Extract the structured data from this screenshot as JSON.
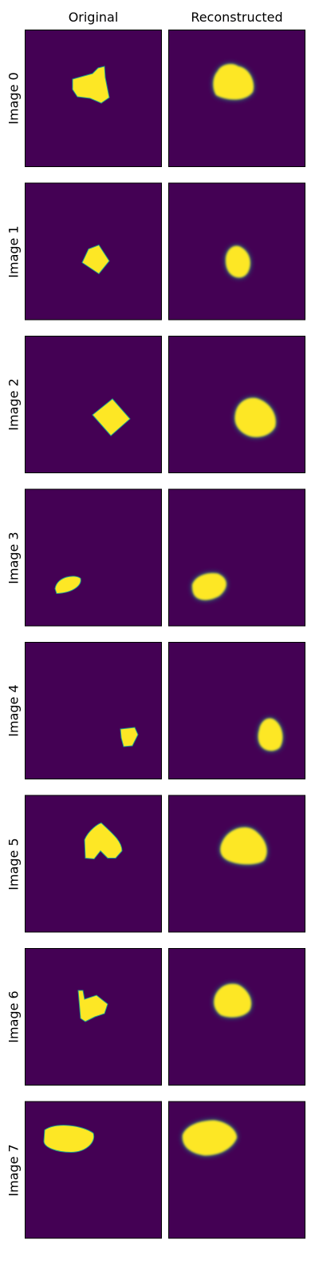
{
  "headers": {
    "original": "Original",
    "reconstructed": "Reconstructed"
  },
  "colors": {
    "background": "#440154",
    "shape": "#fde725",
    "edge": "#21a08a",
    "frame": "#000000"
  },
  "rows": [
    {
      "label": "Image 0",
      "original_shape": "irregular-blob",
      "reconstructed_shape": "rounded-blob"
    },
    {
      "label": "Image 1",
      "original_shape": "diamond",
      "reconstructed_shape": "oval"
    },
    {
      "label": "Image 2",
      "original_shape": "diamond",
      "reconstructed_shape": "rounded-blob"
    },
    {
      "label": "Image 3",
      "original_shape": "ellipse",
      "reconstructed_shape": "oval"
    },
    {
      "label": "Image 4",
      "original_shape": "small-blob",
      "reconstructed_shape": "oval"
    },
    {
      "label": "Image 5",
      "original_shape": "heart",
      "reconstructed_shape": "rounded-blob"
    },
    {
      "label": "Image 6",
      "original_shape": "heart",
      "reconstructed_shape": "rounded-blob"
    },
    {
      "label": "Image 7",
      "original_shape": "ellipse",
      "reconstructed_shape": "ellipse"
    }
  ]
}
